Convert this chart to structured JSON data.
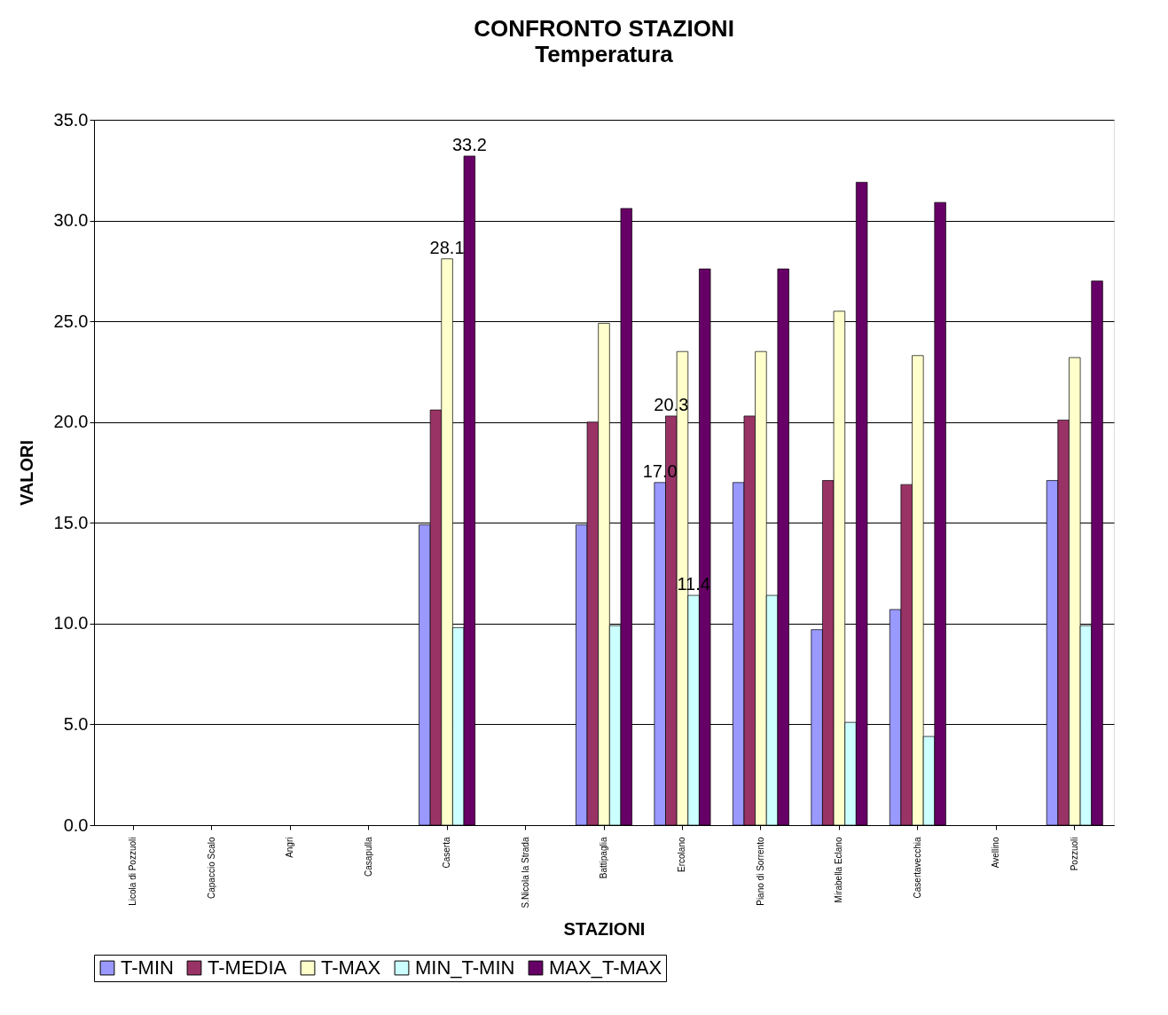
{
  "chart_data": {
    "type": "bar",
    "title": "CONFRONTO STAZIONI",
    "subtitle": "Temperatura",
    "xlabel": "STAZIONI",
    "ylabel": "VALORI",
    "categories": [
      "Licola di Pozzuoli",
      "Capaccio Scalo",
      "Angri",
      "Casapulla",
      "Caserta",
      "S.Nicola la Strada",
      "Battipaglia",
      "Ercolano",
      "Piano di Sorrento",
      "Mirabella Eclano",
      "Casertavecchia",
      "Avellino",
      "Pozzuoli"
    ],
    "series": [
      {
        "name": "T-MIN",
        "color": "#9999ff",
        "values": [
          null,
          null,
          null,
          null,
          14.9,
          null,
          14.9,
          17.0,
          17.0,
          9.7,
          10.7,
          null,
          17.1
        ],
        "value_labels": [
          null,
          null,
          null,
          null,
          null,
          null,
          null,
          "17.0",
          null,
          null,
          null,
          null,
          null
        ]
      },
      {
        "name": "T-MEDIA",
        "color": "#993366",
        "values": [
          null,
          null,
          null,
          null,
          20.6,
          null,
          20.0,
          20.3,
          20.3,
          17.1,
          16.9,
          null,
          20.1
        ],
        "value_labels": [
          null,
          null,
          null,
          null,
          null,
          null,
          null,
          "20.3",
          null,
          null,
          null,
          null,
          null
        ]
      },
      {
        "name": "T-MAX",
        "color": "#ffffcc",
        "values": [
          null,
          null,
          null,
          null,
          28.1,
          null,
          24.9,
          23.5,
          23.5,
          25.5,
          23.3,
          null,
          23.2
        ],
        "value_labels": [
          null,
          null,
          null,
          null,
          "28.1",
          null,
          null,
          null,
          null,
          null,
          null,
          null,
          null
        ]
      },
      {
        "name": "MIN_T-MIN",
        "color": "#ccffff",
        "values": [
          null,
          null,
          null,
          null,
          9.8,
          null,
          9.9,
          11.4,
          11.4,
          5.1,
          4.4,
          null,
          9.9
        ],
        "value_labels": [
          null,
          null,
          null,
          null,
          null,
          null,
          null,
          "11.4",
          null,
          null,
          null,
          null,
          null
        ]
      },
      {
        "name": "MAX_T-MAX",
        "color": "#660066",
        "values": [
          null,
          null,
          null,
          null,
          33.2,
          null,
          30.6,
          27.6,
          27.6,
          31.9,
          30.9,
          null,
          27.0
        ],
        "value_labels": [
          null,
          null,
          null,
          null,
          "33.2",
          null,
          null,
          null,
          null,
          null,
          null,
          null,
          null
        ]
      }
    ],
    "ylim": [
      0,
      35
    ],
    "yticks": [
      {
        "value": 0,
        "label": "0.0"
      },
      {
        "value": 5,
        "label": "5.0"
      },
      {
        "value": 10,
        "label": "10.0"
      },
      {
        "value": 15,
        "label": "15.0"
      },
      {
        "value": 20,
        "label": "20.0"
      },
      {
        "value": 25,
        "label": "25.0"
      },
      {
        "value": 30,
        "label": "30.0"
      },
      {
        "value": 35,
        "label": "35.0"
      }
    ],
    "grid": "y",
    "legend": "bottom"
  }
}
